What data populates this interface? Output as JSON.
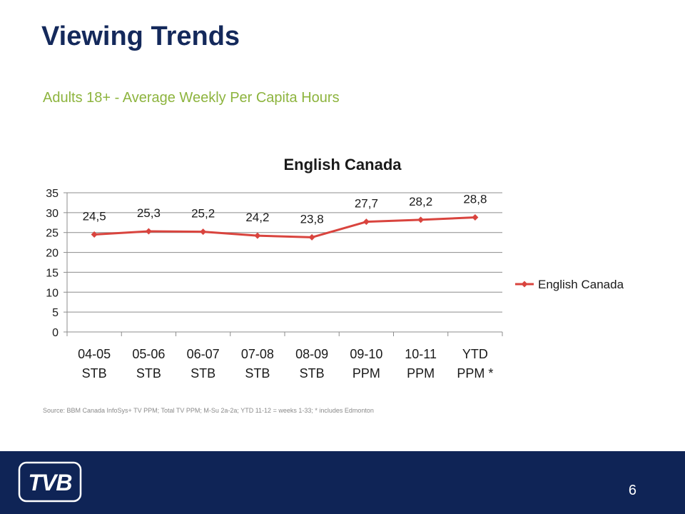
{
  "slide": {
    "title": "Viewing Trends",
    "subtitle": "Adults 18+ - Average Weekly Per Capita Hours",
    "source": "Source: BBM Canada InfoSys+ TV PPM; Total TV PPM; M-Su 2a-2a; YTD 11-12 = weeks 1-33; * includes Edmonton",
    "page_number": "6",
    "logo_text": "TVB"
  },
  "colors": {
    "title": "#14295b",
    "subtitle": "#8db43e",
    "series": "#d9443e",
    "footer": "#0f2456"
  },
  "chart_data": {
    "type": "line",
    "title": "English Canada",
    "categories": [
      [
        "04-05",
        "STB"
      ],
      [
        "05-06",
        "STB"
      ],
      [
        "06-07",
        "STB"
      ],
      [
        "07-08",
        "STB"
      ],
      [
        "08-09",
        "STB"
      ],
      [
        "09-10",
        "PPM"
      ],
      [
        "10-11",
        "PPM"
      ],
      [
        "YTD",
        "PPM *"
      ]
    ],
    "series": [
      {
        "name": "English Canada",
        "values": [
          24.5,
          25.3,
          25.2,
          24.2,
          23.8,
          27.7,
          28.2,
          28.8
        ],
        "data_labels": [
          "24,5",
          "25,3",
          "25,2",
          "24,2",
          "23,8",
          "27,7",
          "28,2",
          "28,8"
        ]
      }
    ],
    "ylim": [
      0,
      35
    ],
    "yticks": [
      0,
      5,
      10,
      15,
      20,
      25,
      30,
      35
    ],
    "grid": true,
    "legend": "right",
    "marker": "diamond"
  }
}
